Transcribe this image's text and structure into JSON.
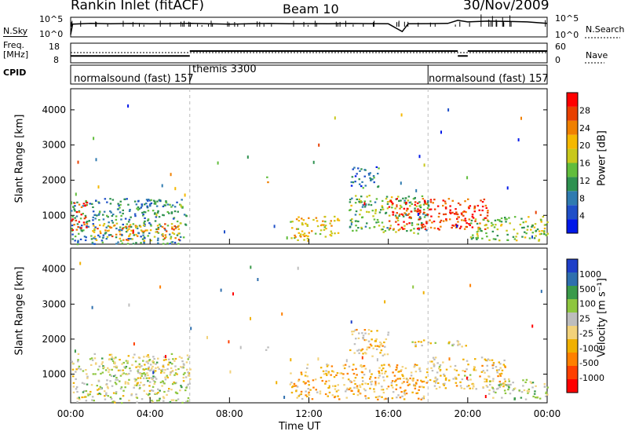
{
  "header": {
    "station": "Rankin Inlet (fitACF)",
    "beam": "Beam 10",
    "date": "30/Nov/2009"
  },
  "colors": {
    "nsky_line": "#000000",
    "power_scale": [
      "#0018e8",
      "#1f4fc8",
      "#2f7bb0",
      "#2e9150",
      "#61bd3c",
      "#c8c81c",
      "#f5b800",
      "#f08000",
      "#e84000",
      "#ff0000"
    ],
    "velocity_scale": [
      "#ff0000",
      "#ff4000",
      "#ff8000",
      "#f0b000",
      "#f2d27a",
      "#bdbdbd",
      "#8ec63f",
      "#3a9a4a",
      "#2e6fae",
      "#1f3fc8"
    ]
  },
  "chart_data": [
    {
      "type": "line",
      "panel": "noise",
      "ylabel_left": "N.Sky",
      "ylabel_right": "N.Search",
      "left_ticks": [
        "10^5",
        "10^0"
      ],
      "right_ticks": [
        "10^5",
        "10^0"
      ],
      "x_hours": [
        0,
        0.1,
        1,
        2,
        3,
        4,
        5,
        6,
        7,
        8,
        9,
        10,
        11,
        12,
        13,
        14,
        15,
        16,
        16.7,
        17,
        18,
        19,
        19.5,
        20,
        21,
        22,
        23,
        24
      ],
      "nsky_level": [
        0.0,
        0.7,
        0.75,
        0.72,
        0.74,
        0.72,
        0.73,
        0.75,
        0.72,
        0.7,
        0.72,
        0.74,
        0.72,
        0.73,
        0.72,
        0.74,
        0.73,
        0.72,
        0.2,
        0.72,
        0.73,
        0.75,
        0.95,
        0.85,
        0.9,
        0.88,
        0.85,
        0.75
      ]
    },
    {
      "type": "line",
      "panel": "frequency",
      "ylabel_left": "Freq.\n[MHz]",
      "ylabel_right": "Nave",
      "left_ticks": [
        "18",
        "8"
      ],
      "right_ticks": [
        "60",
        "0"
      ],
      "cpid_label": "CPID",
      "freq_segments": [
        {
          "start": 0,
          "end": 6,
          "level": 0.35
        },
        {
          "start": 6,
          "end": 19.5,
          "level": 0.6
        },
        {
          "start": 19.5,
          "end": 20,
          "level": 0.35
        },
        {
          "start": 20,
          "end": 24,
          "level": 0.6
        }
      ],
      "cpid_segments": [
        {
          "start": 0,
          "end": 6,
          "label": "normalsound (fast) 157"
        },
        {
          "start": 6,
          "end": 18,
          "label": "themis 3300"
        },
        {
          "start": 18,
          "end": 24,
          "label": "normalsound (fast) 157"
        }
      ]
    },
    {
      "type": "heatmap",
      "panel": "power",
      "ylabel": "Slant Range [km]",
      "yticks": [
        1000,
        2000,
        3000,
        4000
      ],
      "ylim": [
        180,
        4600
      ],
      "xlim": [
        0,
        24
      ],
      "colorbar_label": "Power [dB]",
      "colorbar_ticks": [
        4,
        8,
        12,
        16,
        20,
        24,
        28
      ],
      "blobs": [
        {
          "t0": 0,
          "t1": 5.8,
          "r0": 200,
          "r1": 1500,
          "value": 10
        },
        {
          "t0": 1,
          "t1": 5.5,
          "r0": 300,
          "r1": 800,
          "value": 22
        },
        {
          "t0": 0,
          "t1": 0.8,
          "r0": 600,
          "r1": 1400,
          "value": 28
        },
        {
          "t0": 11,
          "t1": 13.5,
          "r0": 300,
          "r1": 1000,
          "value": 20
        },
        {
          "t0": 14,
          "t1": 18,
          "r0": 500,
          "r1": 1600,
          "value": 14
        },
        {
          "t0": 16,
          "t1": 21,
          "r0": 600,
          "r1": 1500,
          "value": 28
        },
        {
          "t0": 14,
          "t1": 15.5,
          "r0": 1800,
          "r1": 2400,
          "value": 8
        },
        {
          "t0": 20,
          "t1": 24,
          "r0": 300,
          "r1": 1000,
          "value": 16
        },
        {
          "t0": 9.8,
          "t1": 9.9,
          "r0": 1700,
          "r1": 2200,
          "value": 20
        }
      ]
    },
    {
      "type": "heatmap",
      "panel": "velocity",
      "ylabel": "Slant Range [km]",
      "yticks": [
        1000,
        2000,
        3000,
        4000
      ],
      "ylim": [
        180,
        4600
      ],
      "xlim": [
        0,
        24
      ],
      "colorbar_label": "Velocity [m s⁻¹]",
      "colorbar_ticks": [
        1000,
        500,
        100,
        25,
        -25,
        -100,
        -500,
        -1000
      ],
      "blobs": [
        {
          "t0": 0,
          "t1": 6,
          "r0": 200,
          "r1": 1600,
          "value": 100
        },
        {
          "t0": 2,
          "t1": 5.5,
          "r0": 1000,
          "r1": 1400,
          "value": 0
        },
        {
          "t0": 11,
          "t1": 18,
          "r0": 300,
          "r1": 1300,
          "value": -300
        },
        {
          "t0": 14,
          "t1": 16,
          "r0": 1500,
          "r1": 2300,
          "value": -200
        },
        {
          "t0": 17,
          "t1": 20,
          "r0": 1800,
          "r1": 2000,
          "value": 0
        },
        {
          "t0": 18,
          "t1": 22,
          "r0": 600,
          "r1": 1500,
          "value": -150
        },
        {
          "t0": 21,
          "t1": 24,
          "r0": 300,
          "r1": 900,
          "value": 200
        },
        {
          "t0": 9.8,
          "t1": 9.9,
          "r0": 1700,
          "r1": 2200,
          "value": 100
        }
      ]
    }
  ],
  "xaxis": {
    "ticks": [
      "00:00",
      "04:00",
      "08:00",
      "12:00",
      "16:00",
      "20:00",
      "00:00"
    ],
    "tick_hours": [
      0,
      4,
      8,
      12,
      16,
      20,
      24
    ],
    "label": "Time UT"
  }
}
